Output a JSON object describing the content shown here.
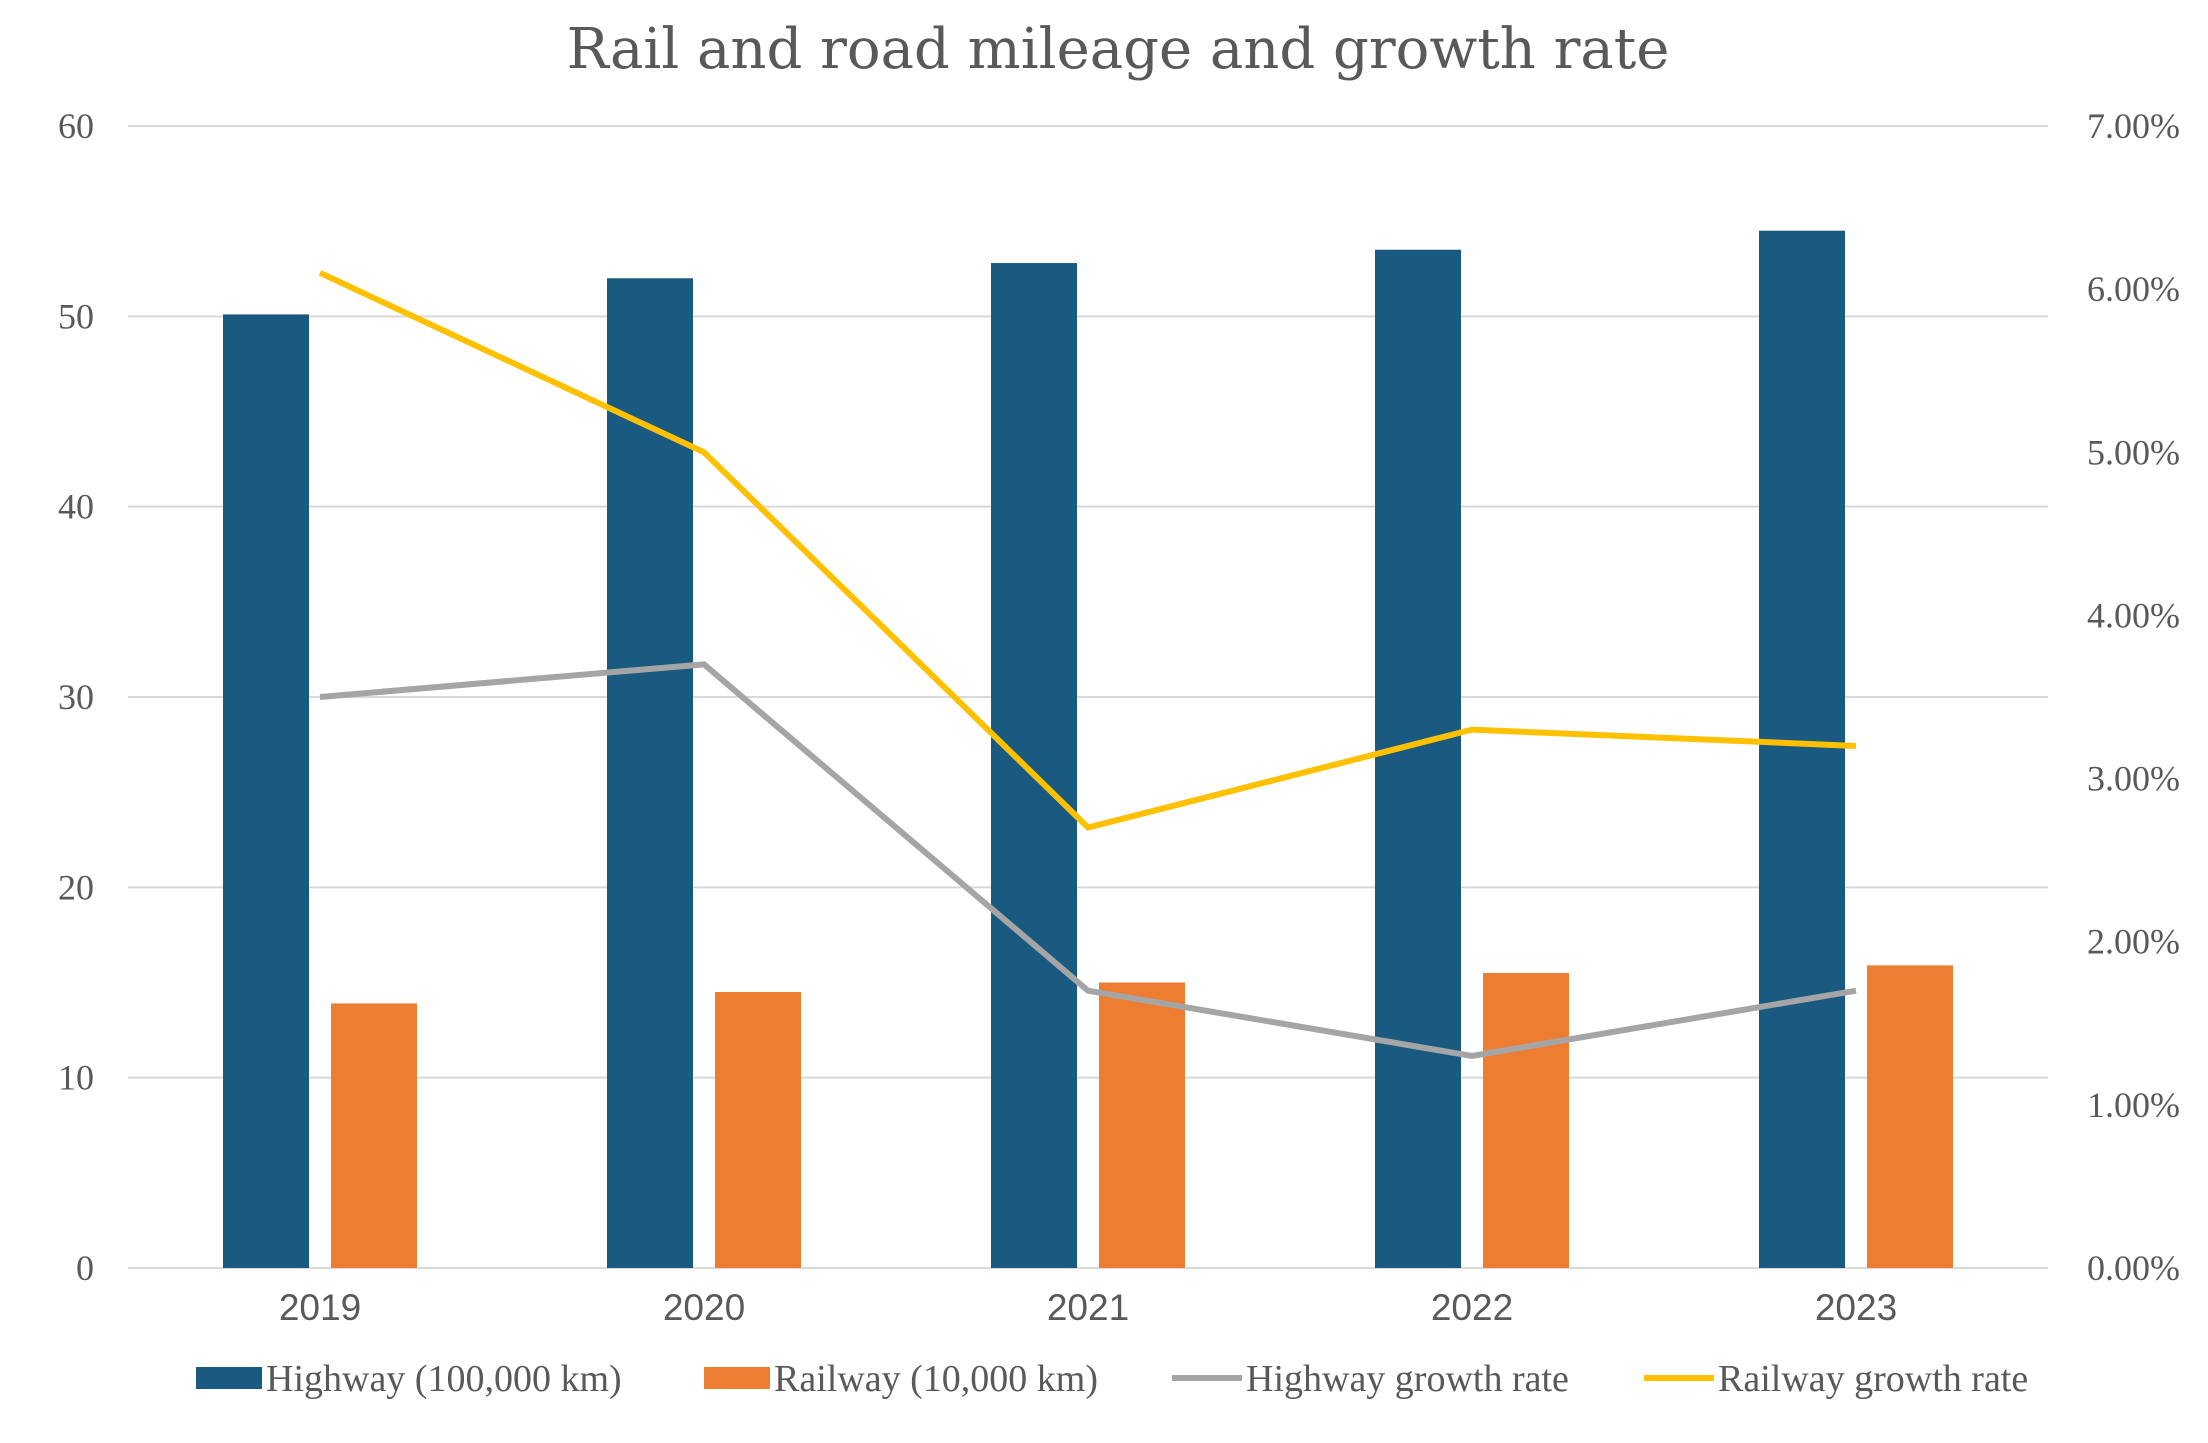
{
  "chart_data": {
    "type": "bar",
    "title": "Rail and road mileage and growth rate",
    "categories": [
      "2019",
      "2020",
      "2021",
      "2022",
      "2023"
    ],
    "series": [
      {
        "name": "Highway (100,000 km)",
        "kind": "bar",
        "axis": "left",
        "color": "#1a5a80",
        "values": [
          50.1,
          52.0,
          52.8,
          53.5,
          54.5
        ]
      },
      {
        "name": "Railway (10,000 km)",
        "kind": "bar",
        "axis": "left",
        "color": "#ed7d31",
        "values": [
          13.9,
          14.5,
          15.0,
          15.5,
          15.9
        ]
      },
      {
        "name": "Highway growth rate",
        "kind": "line",
        "axis": "right",
        "color": "#a5a5a5",
        "values": [
          0.035,
          0.037,
          0.017,
          0.013,
          0.017
        ]
      },
      {
        "name": "Railway growth rate",
        "kind": "line",
        "axis": "right",
        "color": "#ffc000",
        "values": [
          0.061,
          0.05,
          0.027,
          0.033,
          0.032
        ]
      }
    ],
    "left_axis": {
      "ylim": [
        0,
        60
      ],
      "ticks": [
        "0",
        "10",
        "20",
        "30",
        "40",
        "50",
        "60"
      ]
    },
    "right_axis": {
      "ylim": [
        0,
        0.07
      ],
      "ticks": [
        "0.00%",
        "1.00%",
        "2.00%",
        "3.00%",
        "4.00%",
        "5.00%",
        "6.00%",
        "7.00%"
      ]
    },
    "xlabel": "",
    "ylabel": "",
    "grid": true,
    "legend": "bottom"
  }
}
